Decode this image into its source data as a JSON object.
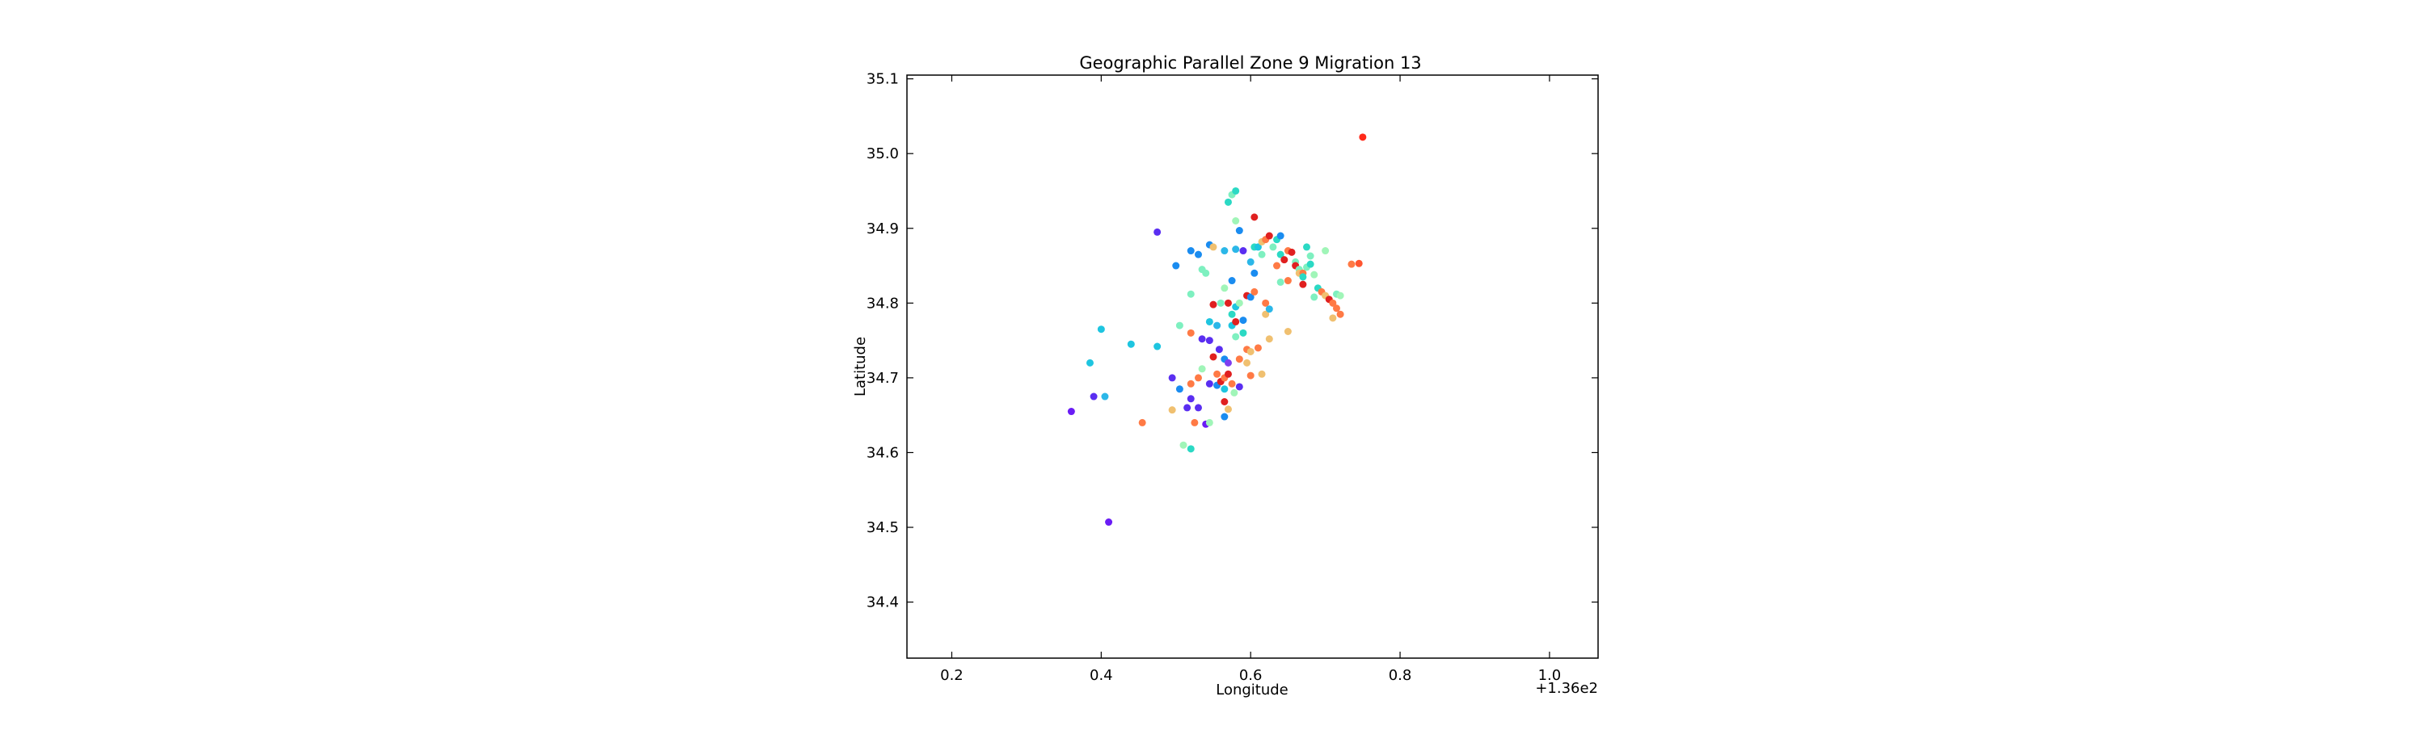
{
  "chart_data": {
    "type": "scatter",
    "title": "Geographic Parallel Zone 9 Migration 13",
    "xlabel": "Longitude",
    "ylabel": "Latitude",
    "x_offset_label": "+1.36e2",
    "xlim": [
      0.14,
      1.065
    ],
    "ylim": [
      34.325,
      35.105
    ],
    "x_ticks": [
      {
        "value": 0.2,
        "label": "0.2"
      },
      {
        "value": 0.4,
        "label": "0.4"
      },
      {
        "value": 0.6,
        "label": "0.6"
      },
      {
        "value": 0.8,
        "label": "0.8"
      },
      {
        "value": 1.0,
        "label": "1.0"
      }
    ],
    "y_ticks": [
      {
        "value": 34.4,
        "label": "34.4"
      },
      {
        "value": 34.5,
        "label": "34.5"
      },
      {
        "value": 34.6,
        "label": "34.6"
      },
      {
        "value": 34.7,
        "label": "34.7"
      },
      {
        "value": 34.8,
        "label": "34.8"
      },
      {
        "value": 34.9,
        "label": "34.9"
      },
      {
        "value": 35.0,
        "label": "35.0"
      },
      {
        "value": 35.1,
        "label": "35.1"
      }
    ],
    "grid": false,
    "colormap": "rainbow",
    "points": [
      {
        "x": 0.36,
        "y": 34.655,
        "color": "#6a1cf5"
      },
      {
        "x": 0.41,
        "y": 34.507,
        "color": "#6a1cf5"
      },
      {
        "x": 0.39,
        "y": 34.675,
        "color": "#5a2ef1"
      },
      {
        "x": 0.405,
        "y": 34.675,
        "color": "#2bb7e8"
      },
      {
        "x": 0.385,
        "y": 34.72,
        "color": "#1ec5e0"
      },
      {
        "x": 0.4,
        "y": 34.765,
        "color": "#1ec5e0"
      },
      {
        "x": 0.44,
        "y": 34.745,
        "color": "#1ec5e0"
      },
      {
        "x": 0.455,
        "y": 34.64,
        "color": "#ff7a45"
      },
      {
        "x": 0.475,
        "y": 34.895,
        "color": "#5a2ef1"
      },
      {
        "x": 0.475,
        "y": 34.742,
        "color": "#1ec5e0"
      },
      {
        "x": 0.495,
        "y": 34.7,
        "color": "#5a2ef1"
      },
      {
        "x": 0.495,
        "y": 34.657,
        "color": "#f0c070"
      },
      {
        "x": 0.5,
        "y": 34.85,
        "color": "#1a8cf0"
      },
      {
        "x": 0.505,
        "y": 34.77,
        "color": "#7ef0c0"
      },
      {
        "x": 0.505,
        "y": 34.685,
        "color": "#1a8cf0"
      },
      {
        "x": 0.51,
        "y": 34.61,
        "color": "#a0f5b8"
      },
      {
        "x": 0.515,
        "y": 34.66,
        "color": "#5a2ef1"
      },
      {
        "x": 0.52,
        "y": 34.87,
        "color": "#1a8cf0"
      },
      {
        "x": 0.52,
        "y": 34.812,
        "color": "#7ef0c0"
      },
      {
        "x": 0.52,
        "y": 34.76,
        "color": "#ff7a45"
      },
      {
        "x": 0.52,
        "y": 34.692,
        "color": "#ff7a45"
      },
      {
        "x": 0.52,
        "y": 34.672,
        "color": "#5a2ef1"
      },
      {
        "x": 0.52,
        "y": 34.605,
        "color": "#2bd9c4"
      },
      {
        "x": 0.525,
        "y": 34.64,
        "color": "#ff7a45"
      },
      {
        "x": 0.53,
        "y": 34.865,
        "color": "#1a8cf0"
      },
      {
        "x": 0.53,
        "y": 34.7,
        "color": "#ff7a45"
      },
      {
        "x": 0.53,
        "y": 34.66,
        "color": "#5a2ef1"
      },
      {
        "x": 0.535,
        "y": 34.845,
        "color": "#7ef0c0"
      },
      {
        "x": 0.535,
        "y": 34.752,
        "color": "#5a2ef1"
      },
      {
        "x": 0.535,
        "y": 34.712,
        "color": "#a0f5b8"
      },
      {
        "x": 0.54,
        "y": 34.84,
        "color": "#7ef0c0"
      },
      {
        "x": 0.54,
        "y": 34.638,
        "color": "#6a1cf5"
      },
      {
        "x": 0.545,
        "y": 34.878,
        "color": "#1a8cf0"
      },
      {
        "x": 0.545,
        "y": 34.775,
        "color": "#1ec5e0"
      },
      {
        "x": 0.545,
        "y": 34.75,
        "color": "#5a2ef1"
      },
      {
        "x": 0.545,
        "y": 34.692,
        "color": "#5a2ef1"
      },
      {
        "x": 0.545,
        "y": 34.64,
        "color": "#a0f5b8"
      },
      {
        "x": 0.55,
        "y": 34.875,
        "color": "#f0c070"
      },
      {
        "x": 0.55,
        "y": 34.798,
        "color": "#e02020"
      },
      {
        "x": 0.55,
        "y": 34.728,
        "color": "#e02020"
      },
      {
        "x": 0.555,
        "y": 34.77,
        "color": "#2bb7e8"
      },
      {
        "x": 0.555,
        "y": 34.705,
        "color": "#ff7a45"
      },
      {
        "x": 0.555,
        "y": 34.69,
        "color": "#1a8cf0"
      },
      {
        "x": 0.558,
        "y": 34.738,
        "color": "#5a2ef1"
      },
      {
        "x": 0.56,
        "y": 34.8,
        "color": "#7ef0c0"
      },
      {
        "x": 0.56,
        "y": 34.695,
        "color": "#e02020"
      },
      {
        "x": 0.565,
        "y": 34.87,
        "color": "#2bb7e8"
      },
      {
        "x": 0.565,
        "y": 34.82,
        "color": "#a0f5b8"
      },
      {
        "x": 0.565,
        "y": 34.725,
        "color": "#1a8cf0"
      },
      {
        "x": 0.565,
        "y": 34.7,
        "color": "#ff7a45"
      },
      {
        "x": 0.565,
        "y": 34.685,
        "color": "#1ec5e0"
      },
      {
        "x": 0.565,
        "y": 34.668,
        "color": "#e02020"
      },
      {
        "x": 0.565,
        "y": 34.648,
        "color": "#1a8cf0"
      },
      {
        "x": 0.57,
        "y": 34.935,
        "color": "#2bd9c4"
      },
      {
        "x": 0.57,
        "y": 34.8,
        "color": "#e02020"
      },
      {
        "x": 0.57,
        "y": 34.72,
        "color": "#7e3ef0"
      },
      {
        "x": 0.57,
        "y": 34.705,
        "color": "#e02020"
      },
      {
        "x": 0.57,
        "y": 34.658,
        "color": "#f0c070"
      },
      {
        "x": 0.575,
        "y": 34.945,
        "color": "#7ef0c0"
      },
      {
        "x": 0.575,
        "y": 34.83,
        "color": "#1a8cf0"
      },
      {
        "x": 0.575,
        "y": 34.785,
        "color": "#2bd9c4"
      },
      {
        "x": 0.575,
        "y": 34.77,
        "color": "#1ec5e0"
      },
      {
        "x": 0.575,
        "y": 34.692,
        "color": "#ff7a45"
      },
      {
        "x": 0.578,
        "y": 34.68,
        "color": "#a0f5b8"
      },
      {
        "x": 0.58,
        "y": 34.95,
        "color": "#2bd9c4"
      },
      {
        "x": 0.58,
        "y": 34.91,
        "color": "#a0f5b8"
      },
      {
        "x": 0.58,
        "y": 34.872,
        "color": "#2bb7e8"
      },
      {
        "x": 0.58,
        "y": 34.795,
        "color": "#1ec5e0"
      },
      {
        "x": 0.58,
        "y": 34.775,
        "color": "#e02020"
      },
      {
        "x": 0.58,
        "y": 34.755,
        "color": "#7ef0c0"
      },
      {
        "x": 0.585,
        "y": 34.897,
        "color": "#1a8cf0"
      },
      {
        "x": 0.585,
        "y": 34.8,
        "color": "#a0f5b8"
      },
      {
        "x": 0.585,
        "y": 34.725,
        "color": "#ff7a45"
      },
      {
        "x": 0.585,
        "y": 34.688,
        "color": "#5a2ef1"
      },
      {
        "x": 0.59,
        "y": 34.87,
        "color": "#5a2ef1"
      },
      {
        "x": 0.59,
        "y": 34.777,
        "color": "#1a8cf0"
      },
      {
        "x": 0.59,
        "y": 34.76,
        "color": "#2bd9c4"
      },
      {
        "x": 0.595,
        "y": 34.81,
        "color": "#e02020"
      },
      {
        "x": 0.595,
        "y": 34.738,
        "color": "#ff7a45"
      },
      {
        "x": 0.595,
        "y": 34.72,
        "color": "#f0c070"
      },
      {
        "x": 0.6,
        "y": 34.855,
        "color": "#2bb7e8"
      },
      {
        "x": 0.6,
        "y": 34.808,
        "color": "#1a8cf0"
      },
      {
        "x": 0.6,
        "y": 34.735,
        "color": "#f0c070"
      },
      {
        "x": 0.6,
        "y": 34.703,
        "color": "#ff7a45"
      },
      {
        "x": 0.605,
        "y": 34.915,
        "color": "#e02020"
      },
      {
        "x": 0.605,
        "y": 34.875,
        "color": "#2bd9c4"
      },
      {
        "x": 0.605,
        "y": 34.84,
        "color": "#1a8cf0"
      },
      {
        "x": 0.605,
        "y": 34.815,
        "color": "#ff7a45"
      },
      {
        "x": 0.61,
        "y": 34.875,
        "color": "#1ec5e0"
      },
      {
        "x": 0.61,
        "y": 34.74,
        "color": "#ff7a45"
      },
      {
        "x": 0.615,
        "y": 34.882,
        "color": "#f0c070"
      },
      {
        "x": 0.615,
        "y": 34.865,
        "color": "#7ef0c0"
      },
      {
        "x": 0.615,
        "y": 34.705,
        "color": "#f0c070"
      },
      {
        "x": 0.62,
        "y": 34.885,
        "color": "#ff7a45"
      },
      {
        "x": 0.62,
        "y": 34.8,
        "color": "#ff7a45"
      },
      {
        "x": 0.62,
        "y": 34.785,
        "color": "#f0c070"
      },
      {
        "x": 0.625,
        "y": 34.89,
        "color": "#e02020"
      },
      {
        "x": 0.625,
        "y": 34.792,
        "color": "#2bb7e8"
      },
      {
        "x": 0.625,
        "y": 34.752,
        "color": "#f0c070"
      },
      {
        "x": 0.63,
        "y": 34.875,
        "color": "#7ef0c0"
      },
      {
        "x": 0.635,
        "y": 34.885,
        "color": "#2bd9c4"
      },
      {
        "x": 0.635,
        "y": 34.85,
        "color": "#ff7a45"
      },
      {
        "x": 0.64,
        "y": 34.89,
        "color": "#1a8cf0"
      },
      {
        "x": 0.64,
        "y": 34.865,
        "color": "#2bd9c4"
      },
      {
        "x": 0.64,
        "y": 34.828,
        "color": "#7ef0c0"
      },
      {
        "x": 0.645,
        "y": 34.858,
        "color": "#e02020"
      },
      {
        "x": 0.65,
        "y": 34.87,
        "color": "#ff7a45"
      },
      {
        "x": 0.65,
        "y": 34.83,
        "color": "#ff7a45"
      },
      {
        "x": 0.65,
        "y": 34.762,
        "color": "#f0c070"
      },
      {
        "x": 0.655,
        "y": 34.868,
        "color": "#e02020"
      },
      {
        "x": 0.66,
        "y": 34.855,
        "color": "#7ef0c0"
      },
      {
        "x": 0.66,
        "y": 34.85,
        "color": "#e02020"
      },
      {
        "x": 0.665,
        "y": 34.845,
        "color": "#7ef0c0"
      },
      {
        "x": 0.665,
        "y": 34.84,
        "color": "#f0c070"
      },
      {
        "x": 0.67,
        "y": 34.84,
        "color": "#ff7a45"
      },
      {
        "x": 0.67,
        "y": 34.835,
        "color": "#2bd9c4"
      },
      {
        "x": 0.67,
        "y": 34.825,
        "color": "#e02020"
      },
      {
        "x": 0.675,
        "y": 34.875,
        "color": "#2bd9c4"
      },
      {
        "x": 0.675,
        "y": 34.848,
        "color": "#7ef0c0"
      },
      {
        "x": 0.68,
        "y": 34.863,
        "color": "#7ef0c0"
      },
      {
        "x": 0.68,
        "y": 34.852,
        "color": "#2bd9c4"
      },
      {
        "x": 0.685,
        "y": 34.838,
        "color": "#a0f5b8"
      },
      {
        "x": 0.685,
        "y": 34.808,
        "color": "#7ef0c0"
      },
      {
        "x": 0.69,
        "y": 34.82,
        "color": "#2bd9c4"
      },
      {
        "x": 0.695,
        "y": 34.815,
        "color": "#ff7a45"
      },
      {
        "x": 0.7,
        "y": 34.87,
        "color": "#a0f5b8"
      },
      {
        "x": 0.7,
        "y": 34.81,
        "color": "#f0c070"
      },
      {
        "x": 0.705,
        "y": 34.805,
        "color": "#e02020"
      },
      {
        "x": 0.71,
        "y": 34.8,
        "color": "#ff7a45"
      },
      {
        "x": 0.71,
        "y": 34.78,
        "color": "#f0c070"
      },
      {
        "x": 0.715,
        "y": 34.812,
        "color": "#7ef0c0"
      },
      {
        "x": 0.715,
        "y": 34.793,
        "color": "#ff7a45"
      },
      {
        "x": 0.72,
        "y": 34.81,
        "color": "#a0f5b8"
      },
      {
        "x": 0.72,
        "y": 34.785,
        "color": "#ff7a45"
      },
      {
        "x": 0.735,
        "y": 34.852,
        "color": "#ff7a45"
      },
      {
        "x": 0.745,
        "y": 34.853,
        "color": "#ff5530"
      },
      {
        "x": 0.75,
        "y": 35.022,
        "color": "#ff2a1a"
      }
    ]
  }
}
